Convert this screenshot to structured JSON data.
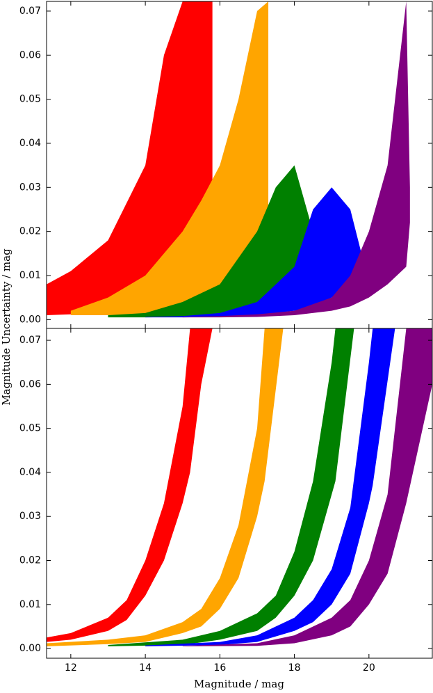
{
  "chart_data": [
    {
      "type": "band",
      "ylabel": "Magnitude Uncertainty / mag",
      "xlim": [
        11.35,
        21.7
      ],
      "ylim": [
        -0.002,
        0.0722
      ],
      "xticks": [
        12,
        14,
        16,
        18,
        20
      ],
      "yticks": [
        {
          "value": 0,
          "label": "0.00"
        },
        {
          "value": 0.01,
          "label": "0.01"
        },
        {
          "value": 0.02,
          "label": "0.02"
        },
        {
          "value": 0.03,
          "label": "0.03"
        },
        {
          "value": 0.04,
          "label": "0.04"
        },
        {
          "value": 0.05,
          "label": "0.05"
        },
        {
          "value": 0.06,
          "label": "0.06"
        },
        {
          "value": 0.07,
          "label": "0.07"
        }
      ],
      "series": [
        {
          "color": "#ff0000",
          "x": [
            11.35,
            12,
            13,
            14,
            14.5,
            15,
            15.5,
            15.8
          ],
          "upper": [
            0.008,
            0.011,
            0.018,
            0.035,
            0.06,
            0.0722,
            0.0722,
            0.0722
          ],
          "lower": [
            0.001,
            0.0012,
            0.002,
            0.004,
            0.006,
            0.01,
            0.015,
            0.025
          ]
        },
        {
          "color": "#ffa500",
          "x": [
            12,
            13,
            14,
            15,
            15.5,
            16,
            16.5,
            17,
            17.3
          ],
          "upper": [
            0.002,
            0.005,
            0.01,
            0.02,
            0.027,
            0.035,
            0.05,
            0.07,
            0.0722
          ],
          "lower": [
            0.001,
            0.001,
            0.0012,
            0.002,
            0.003,
            0.005,
            0.008,
            0.012,
            0.02
          ]
        },
        {
          "color": "#008000",
          "x": [
            13,
            14,
            15,
            16,
            17,
            17.5,
            18,
            18.5
          ],
          "upper": [
            0.001,
            0.0015,
            0.004,
            0.008,
            0.02,
            0.03,
            0.035,
            0.02
          ],
          "lower": [
            0.0005,
            0.0005,
            0.0006,
            0.001,
            0.002,
            0.004,
            0.008,
            0.015
          ]
        },
        {
          "color": "#0000ff",
          "x": [
            14,
            15,
            16,
            17,
            18,
            18.5,
            19,
            19.5,
            19.8
          ],
          "upper": [
            0.0006,
            0.0008,
            0.0015,
            0.004,
            0.012,
            0.025,
            0.03,
            0.025,
            0.015
          ],
          "lower": [
            0.0005,
            0.0005,
            0.0006,
            0.001,
            0.002,
            0.003,
            0.005,
            0.008,
            0.01
          ]
        },
        {
          "color": "#800080",
          "x": [
            15,
            16,
            17,
            18,
            19,
            19.5,
            20,
            20.5,
            21,
            21.1
          ],
          "upper": [
            0.0006,
            0.0008,
            0.0012,
            0.002,
            0.005,
            0.01,
            0.02,
            0.035,
            0.0722,
            0.03
          ],
          "lower": [
            0.0005,
            0.0005,
            0.0006,
            0.001,
            0.002,
            0.003,
            0.005,
            0.008,
            0.012,
            0.022
          ]
        }
      ]
    },
    {
      "type": "band",
      "xlabel": "Magnitude / mag",
      "xlim": [
        11.35,
        21.7
      ],
      "ylim": [
        -0.0022,
        0.0727
      ],
      "xticks": [
        12,
        14,
        16,
        18,
        20
      ],
      "yticks": [
        {
          "value": 0,
          "label": "0.00"
        },
        {
          "value": 0.01,
          "label": "0.01"
        },
        {
          "value": 0.02,
          "label": "0.02"
        },
        {
          "value": 0.03,
          "label": "0.03"
        },
        {
          "value": 0.04,
          "label": "0.04"
        },
        {
          "value": 0.05,
          "label": "0.05"
        },
        {
          "value": 0.06,
          "label": "0.06"
        },
        {
          "value": 0.07,
          "label": "0.07"
        }
      ],
      "series": [
        {
          "color": "#ff0000",
          "x": [
            11.35,
            12,
            13,
            13.5,
            14,
            14.5,
            15,
            15.2,
            15.5,
            15.8
          ],
          "upper": [
            0.0025,
            0.0035,
            0.007,
            0.011,
            0.02,
            0.033,
            0.055,
            0.0727,
            0.0727,
            0.0727
          ],
          "lower": [
            0.0015,
            0.002,
            0.004,
            0.0065,
            0.012,
            0.02,
            0.033,
            0.04,
            0.06,
            0.0727
          ]
        },
        {
          "color": "#ffa500",
          "x": [
            11.35,
            13,
            14,
            15,
            15.5,
            16,
            16.5,
            17,
            17.2,
            17.7
          ],
          "upper": [
            0.0012,
            0.002,
            0.003,
            0.006,
            0.009,
            0.016,
            0.028,
            0.05,
            0.0727,
            0.0727
          ],
          "lower": [
            0.0005,
            0.001,
            0.0015,
            0.0035,
            0.005,
            0.009,
            0.016,
            0.03,
            0.038,
            0.0727
          ]
        },
        {
          "color": "#008000",
          "x": [
            13,
            15,
            16,
            17,
            17.5,
            18,
            18.5,
            19,
            19.1,
            19.6
          ],
          "upper": [
            0.0008,
            0.002,
            0.004,
            0.008,
            0.012,
            0.022,
            0.038,
            0.065,
            0.0727,
            0.0727
          ],
          "lower": [
            0.0005,
            0.0008,
            0.002,
            0.004,
            0.007,
            0.012,
            0.02,
            0.035,
            0.038,
            0.0727
          ]
        },
        {
          "color": "#0000ff",
          "x": [
            14,
            16,
            17,
            18,
            18.5,
            19,
            19.5,
            20,
            20.1,
            20.7
          ],
          "upper": [
            0.0007,
            0.0015,
            0.003,
            0.007,
            0.011,
            0.018,
            0.032,
            0.065,
            0.0727,
            0.0727
          ],
          "lower": [
            0.0005,
            0.0008,
            0.0015,
            0.004,
            0.006,
            0.01,
            0.017,
            0.033,
            0.037,
            0.0727
          ]
        },
        {
          "color": "#800080",
          "x": [
            15,
            17,
            18,
            19,
            19.5,
            20,
            20.5,
            21,
            21.7
          ],
          "upper": [
            0.0006,
            0.0012,
            0.003,
            0.007,
            0.011,
            0.02,
            0.035,
            0.0727,
            0.0727
          ],
          "lower": [
            0.0005,
            0.0006,
            0.0012,
            0.003,
            0.005,
            0.01,
            0.017,
            0.033,
            0.06
          ]
        }
      ]
    }
  ]
}
